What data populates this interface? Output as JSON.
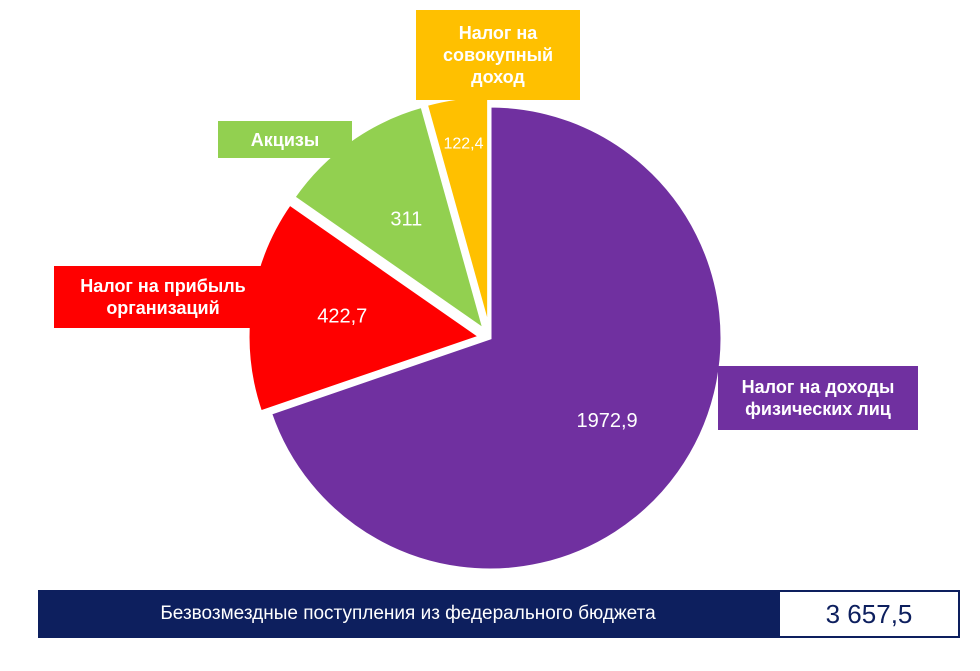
{
  "chart_data": {
    "type": "pie",
    "slices": [
      {
        "label": "Налог на доходы физических лиц",
        "value": 1972.9,
        "value_label": "1972,9",
        "color": "#7030a0"
      },
      {
        "label": "Налог на прибыль организаций",
        "value": 422.7,
        "value_label": "422,7",
        "color": "#ff0000"
      },
      {
        "label": "Акцизы",
        "value": 311,
        "value_label": "311",
        "color": "#92d050"
      },
      {
        "label": "Налог на совокупный доход",
        "value": 122.4,
        "value_label": "122,4",
        "color": "#ffc000"
      }
    ]
  },
  "labels": {
    "ndfl": "Налог на доходы\nфизических лиц",
    "npo": "Налог на прибыль\nорганизаций",
    "akc": "Акцизы",
    "nsd": "Налог на\nсовокупный\nдоход"
  },
  "footer": {
    "label": "Безвозмездные поступления из федерального бюджета",
    "value": "3 657,5",
    "color_bg": "#0d1f5e"
  }
}
